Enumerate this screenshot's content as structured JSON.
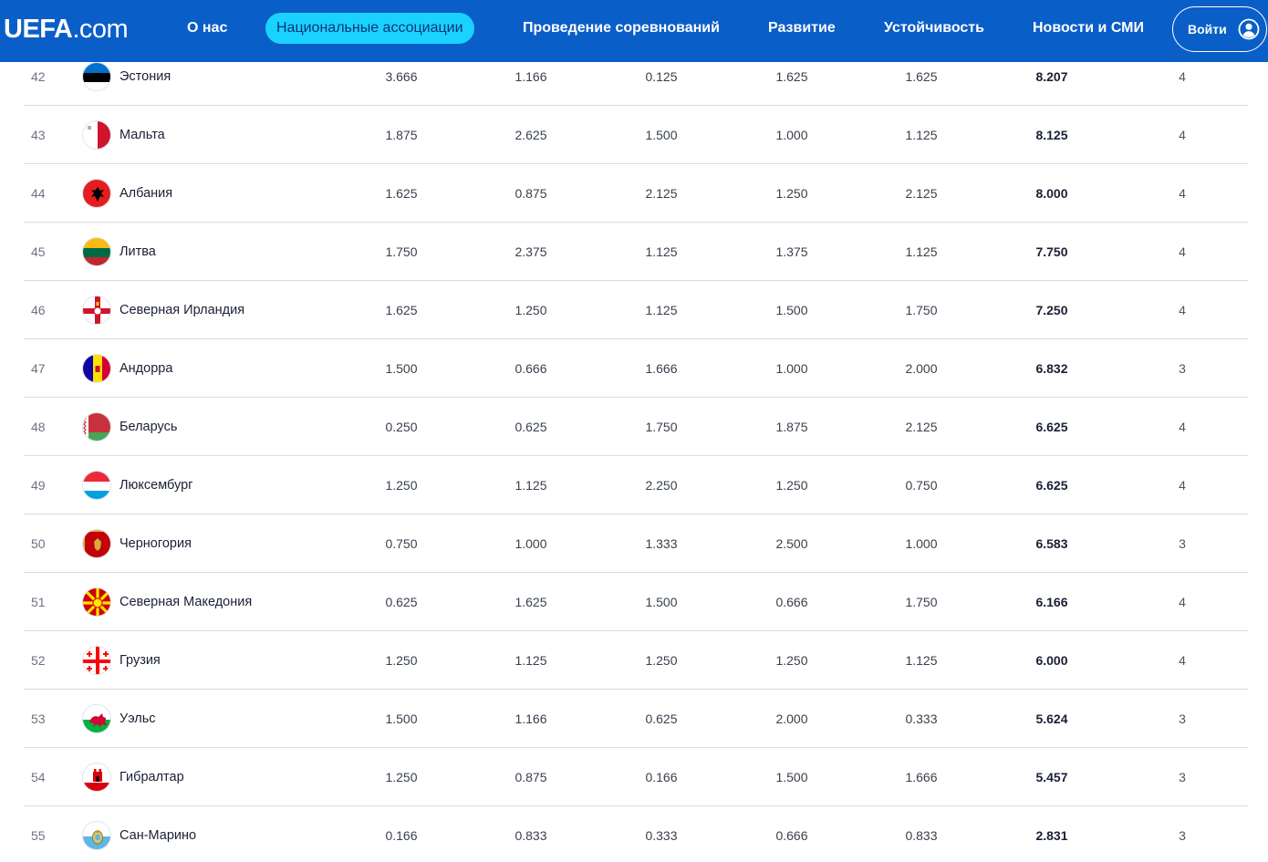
{
  "header": {
    "logo_bold": "UEFA",
    "logo_light": ".com",
    "nav": [
      {
        "label": "О нас",
        "active": false
      },
      {
        "label": "Национальные ассоциации",
        "active": true
      },
      {
        "label": "Проведение соревнований",
        "active": false
      },
      {
        "label": "Развитие",
        "active": false
      },
      {
        "label": "Устойчивость",
        "active": false
      },
      {
        "label": "Новости и СМИ",
        "active": false
      }
    ],
    "login_label": "Войти"
  },
  "rows": [
    {
      "rank": "42",
      "country": "Эстония",
      "flag": "estonia-flag-icon",
      "v1": "3.666",
      "v2": "1.166",
      "v3": "0.125",
      "v4": "1.625",
      "v5": "1.625",
      "total": "8.207",
      "count": "4"
    },
    {
      "rank": "43",
      "country": "Мальта",
      "flag": "malta-flag-icon",
      "v1": "1.875",
      "v2": "2.625",
      "v3": "1.500",
      "v4": "1.000",
      "v5": "1.125",
      "total": "8.125",
      "count": "4"
    },
    {
      "rank": "44",
      "country": "Албания",
      "flag": "albania-flag-icon",
      "v1": "1.625",
      "v2": "0.875",
      "v3": "2.125",
      "v4": "1.250",
      "v5": "2.125",
      "total": "8.000",
      "count": "4"
    },
    {
      "rank": "45",
      "country": "Литва",
      "flag": "lithuania-flag-icon",
      "v1": "1.750",
      "v2": "2.375",
      "v3": "1.125",
      "v4": "1.375",
      "v5": "1.125",
      "total": "7.750",
      "count": "4"
    },
    {
      "rank": "46",
      "country": "Северная Ирландия",
      "flag": "northern-ireland-flag-icon",
      "v1": "1.625",
      "v2": "1.250",
      "v3": "1.125",
      "v4": "1.500",
      "v5": "1.750",
      "total": "7.250",
      "count": "4"
    },
    {
      "rank": "47",
      "country": "Андорра",
      "flag": "andorra-flag-icon",
      "v1": "1.500",
      "v2": "0.666",
      "v3": "1.666",
      "v4": "1.000",
      "v5": "2.000",
      "total": "6.832",
      "count": "3"
    },
    {
      "rank": "48",
      "country": "Беларусь",
      "flag": "belarus-flag-icon",
      "v1": "0.250",
      "v2": "0.625",
      "v3": "1.750",
      "v4": "1.875",
      "v5": "2.125",
      "total": "6.625",
      "count": "4"
    },
    {
      "rank": "49",
      "country": "Люксембург",
      "flag": "luxembourg-flag-icon",
      "v1": "1.250",
      "v2": "1.125",
      "v3": "2.250",
      "v4": "1.250",
      "v5": "0.750",
      "total": "6.625",
      "count": "4"
    },
    {
      "rank": "50",
      "country": "Черногория",
      "flag": "montenegro-flag-icon",
      "v1": "0.750",
      "v2": "1.000",
      "v3": "1.333",
      "v4": "2.500",
      "v5": "1.000",
      "total": "6.583",
      "count": "3"
    },
    {
      "rank": "51",
      "country": "Северная Македония",
      "flag": "north-macedonia-flag-icon",
      "v1": "0.625",
      "v2": "1.625",
      "v3": "1.500",
      "v4": "0.666",
      "v5": "1.750",
      "total": "6.166",
      "count": "4"
    },
    {
      "rank": "52",
      "country": "Грузия",
      "flag": "georgia-flag-icon",
      "v1": "1.250",
      "v2": "1.125",
      "v3": "1.250",
      "v4": "1.250",
      "v5": "1.125",
      "total": "6.000",
      "count": "4"
    },
    {
      "rank": "53",
      "country": "Уэльс",
      "flag": "wales-flag-icon",
      "v1": "1.500",
      "v2": "1.166",
      "v3": "0.625",
      "v4": "2.000",
      "v5": "0.333",
      "total": "5.624",
      "count": "3"
    },
    {
      "rank": "54",
      "country": "Гибралтар",
      "flag": "gibraltar-flag-icon",
      "v1": "1.250",
      "v2": "0.875",
      "v3": "0.166",
      "v4": "1.500",
      "v5": "1.666",
      "total": "5.457",
      "count": "3"
    },
    {
      "rank": "55",
      "country": "Сан-Марино",
      "flag": "san-marino-flag-icon",
      "v1": "0.166",
      "v2": "0.833",
      "v3": "0.333",
      "v4": "0.666",
      "v5": "0.833",
      "total": "2.831",
      "count": "3"
    }
  ],
  "colors": {
    "brand": "#0a5ec8",
    "active_pill": "#19d2ff"
  }
}
